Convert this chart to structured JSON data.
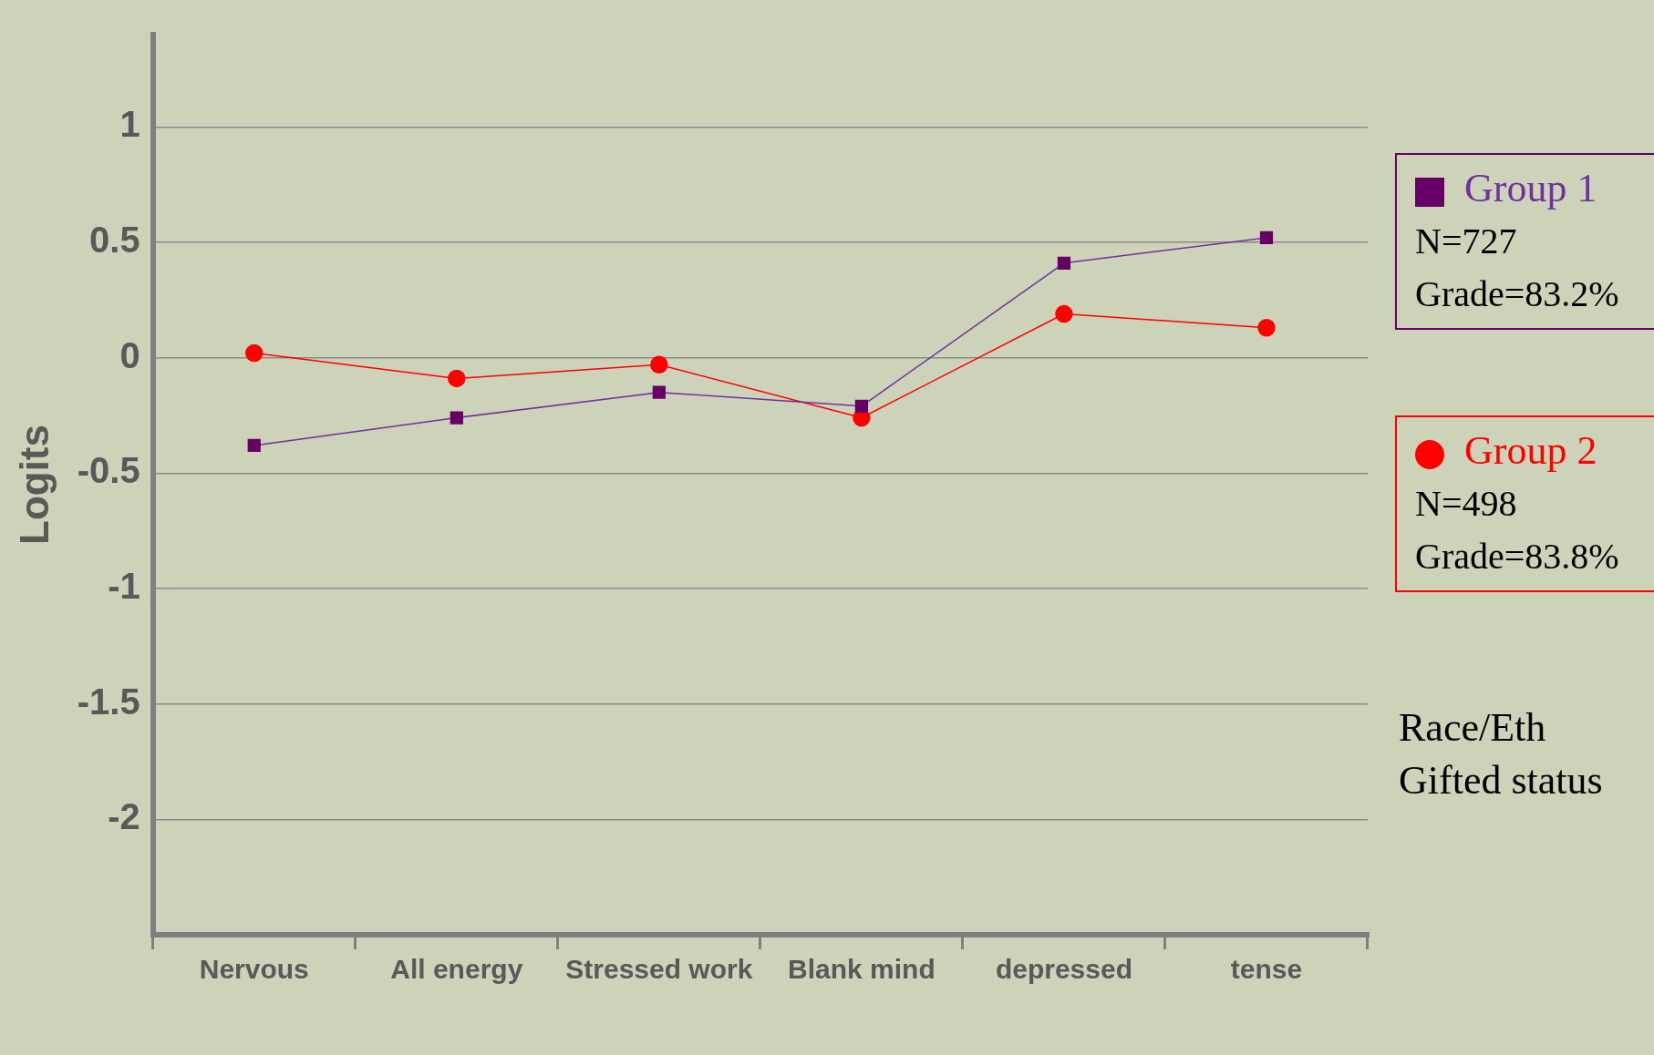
{
  "chart_data": {
    "type": "line",
    "ylabel": "Logits",
    "categories": [
      "Nervous",
      "All energy",
      "Stressed work",
      "Blank mind",
      "depressed",
      "tense"
    ],
    "series": [
      {
        "name": "Group 1",
        "color": "#660066",
        "marker": "square",
        "values": [
          -0.38,
          -0.26,
          -0.15,
          -0.21,
          0.41,
          0.52
        ]
      },
      {
        "name": "Group 2",
        "color": "#ff0000",
        "marker": "circle",
        "values": [
          0.02,
          -0.09,
          -0.03,
          -0.26,
          0.19,
          0.13
        ]
      }
    ],
    "ylim": [
      -2.5,
      1.4
    ],
    "yticks": [
      -2,
      -1.5,
      -1,
      -0.5,
      0,
      0.5,
      1
    ],
    "grid": "y",
    "legend": "right",
    "annotations": [
      "N=727",
      "Grade=83.2%",
      "N=498",
      "Grade=83.8%",
      "Race/Eth\nGifted status"
    ]
  }
}
